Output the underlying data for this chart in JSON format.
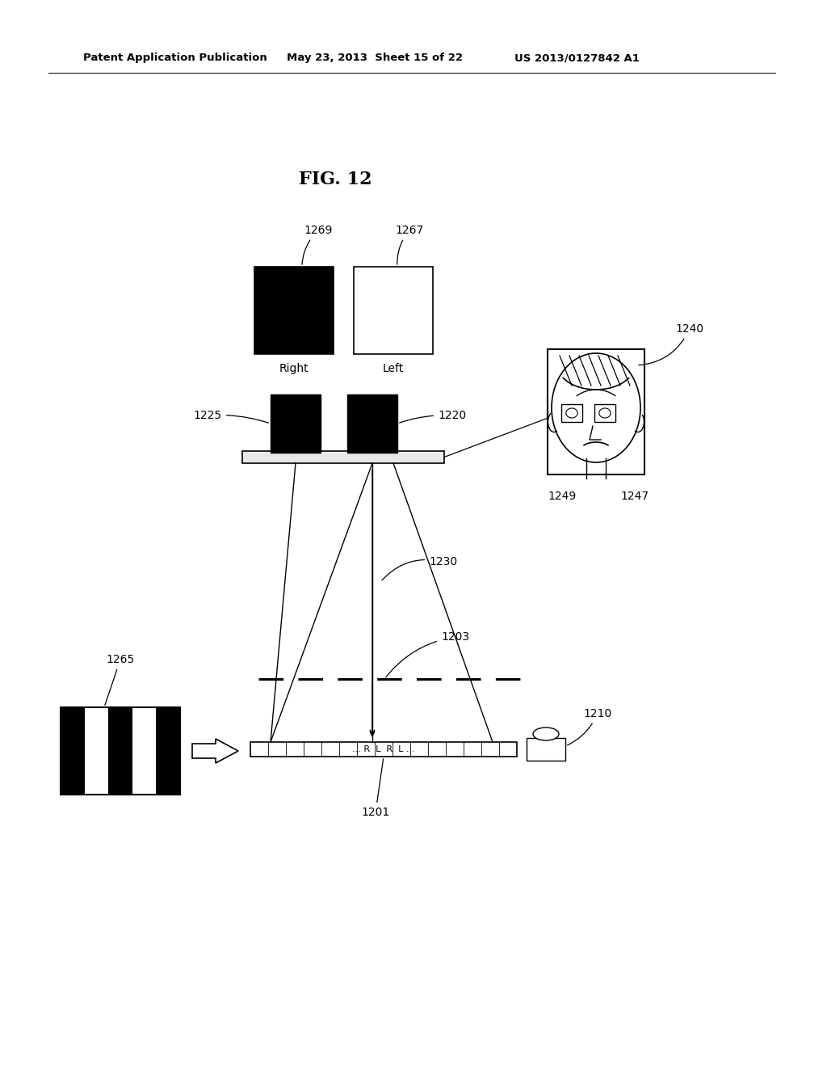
{
  "bg_color": "#ffffff",
  "header_left": "Patent Application Publication",
  "header_mid": "May 23, 2013  Sheet 15 of 22",
  "header_right": "US 2013/0127842 A1",
  "fig_label": "FIG. 12",
  "label_1269": "1269",
  "label_1267": "1267",
  "label_1225": "1225",
  "label_1220": "1220",
  "label_1240": "1240",
  "label_1249": "1249",
  "label_1247": "1247",
  "label_1230": "1230",
  "label_1203": "1203",
  "label_1210": "1210",
  "label_1265": "1265",
  "label_1201": "1201",
  "label_right": "Right",
  "label_left": "Left",
  "label_rl": "... R  L  R  L ..."
}
